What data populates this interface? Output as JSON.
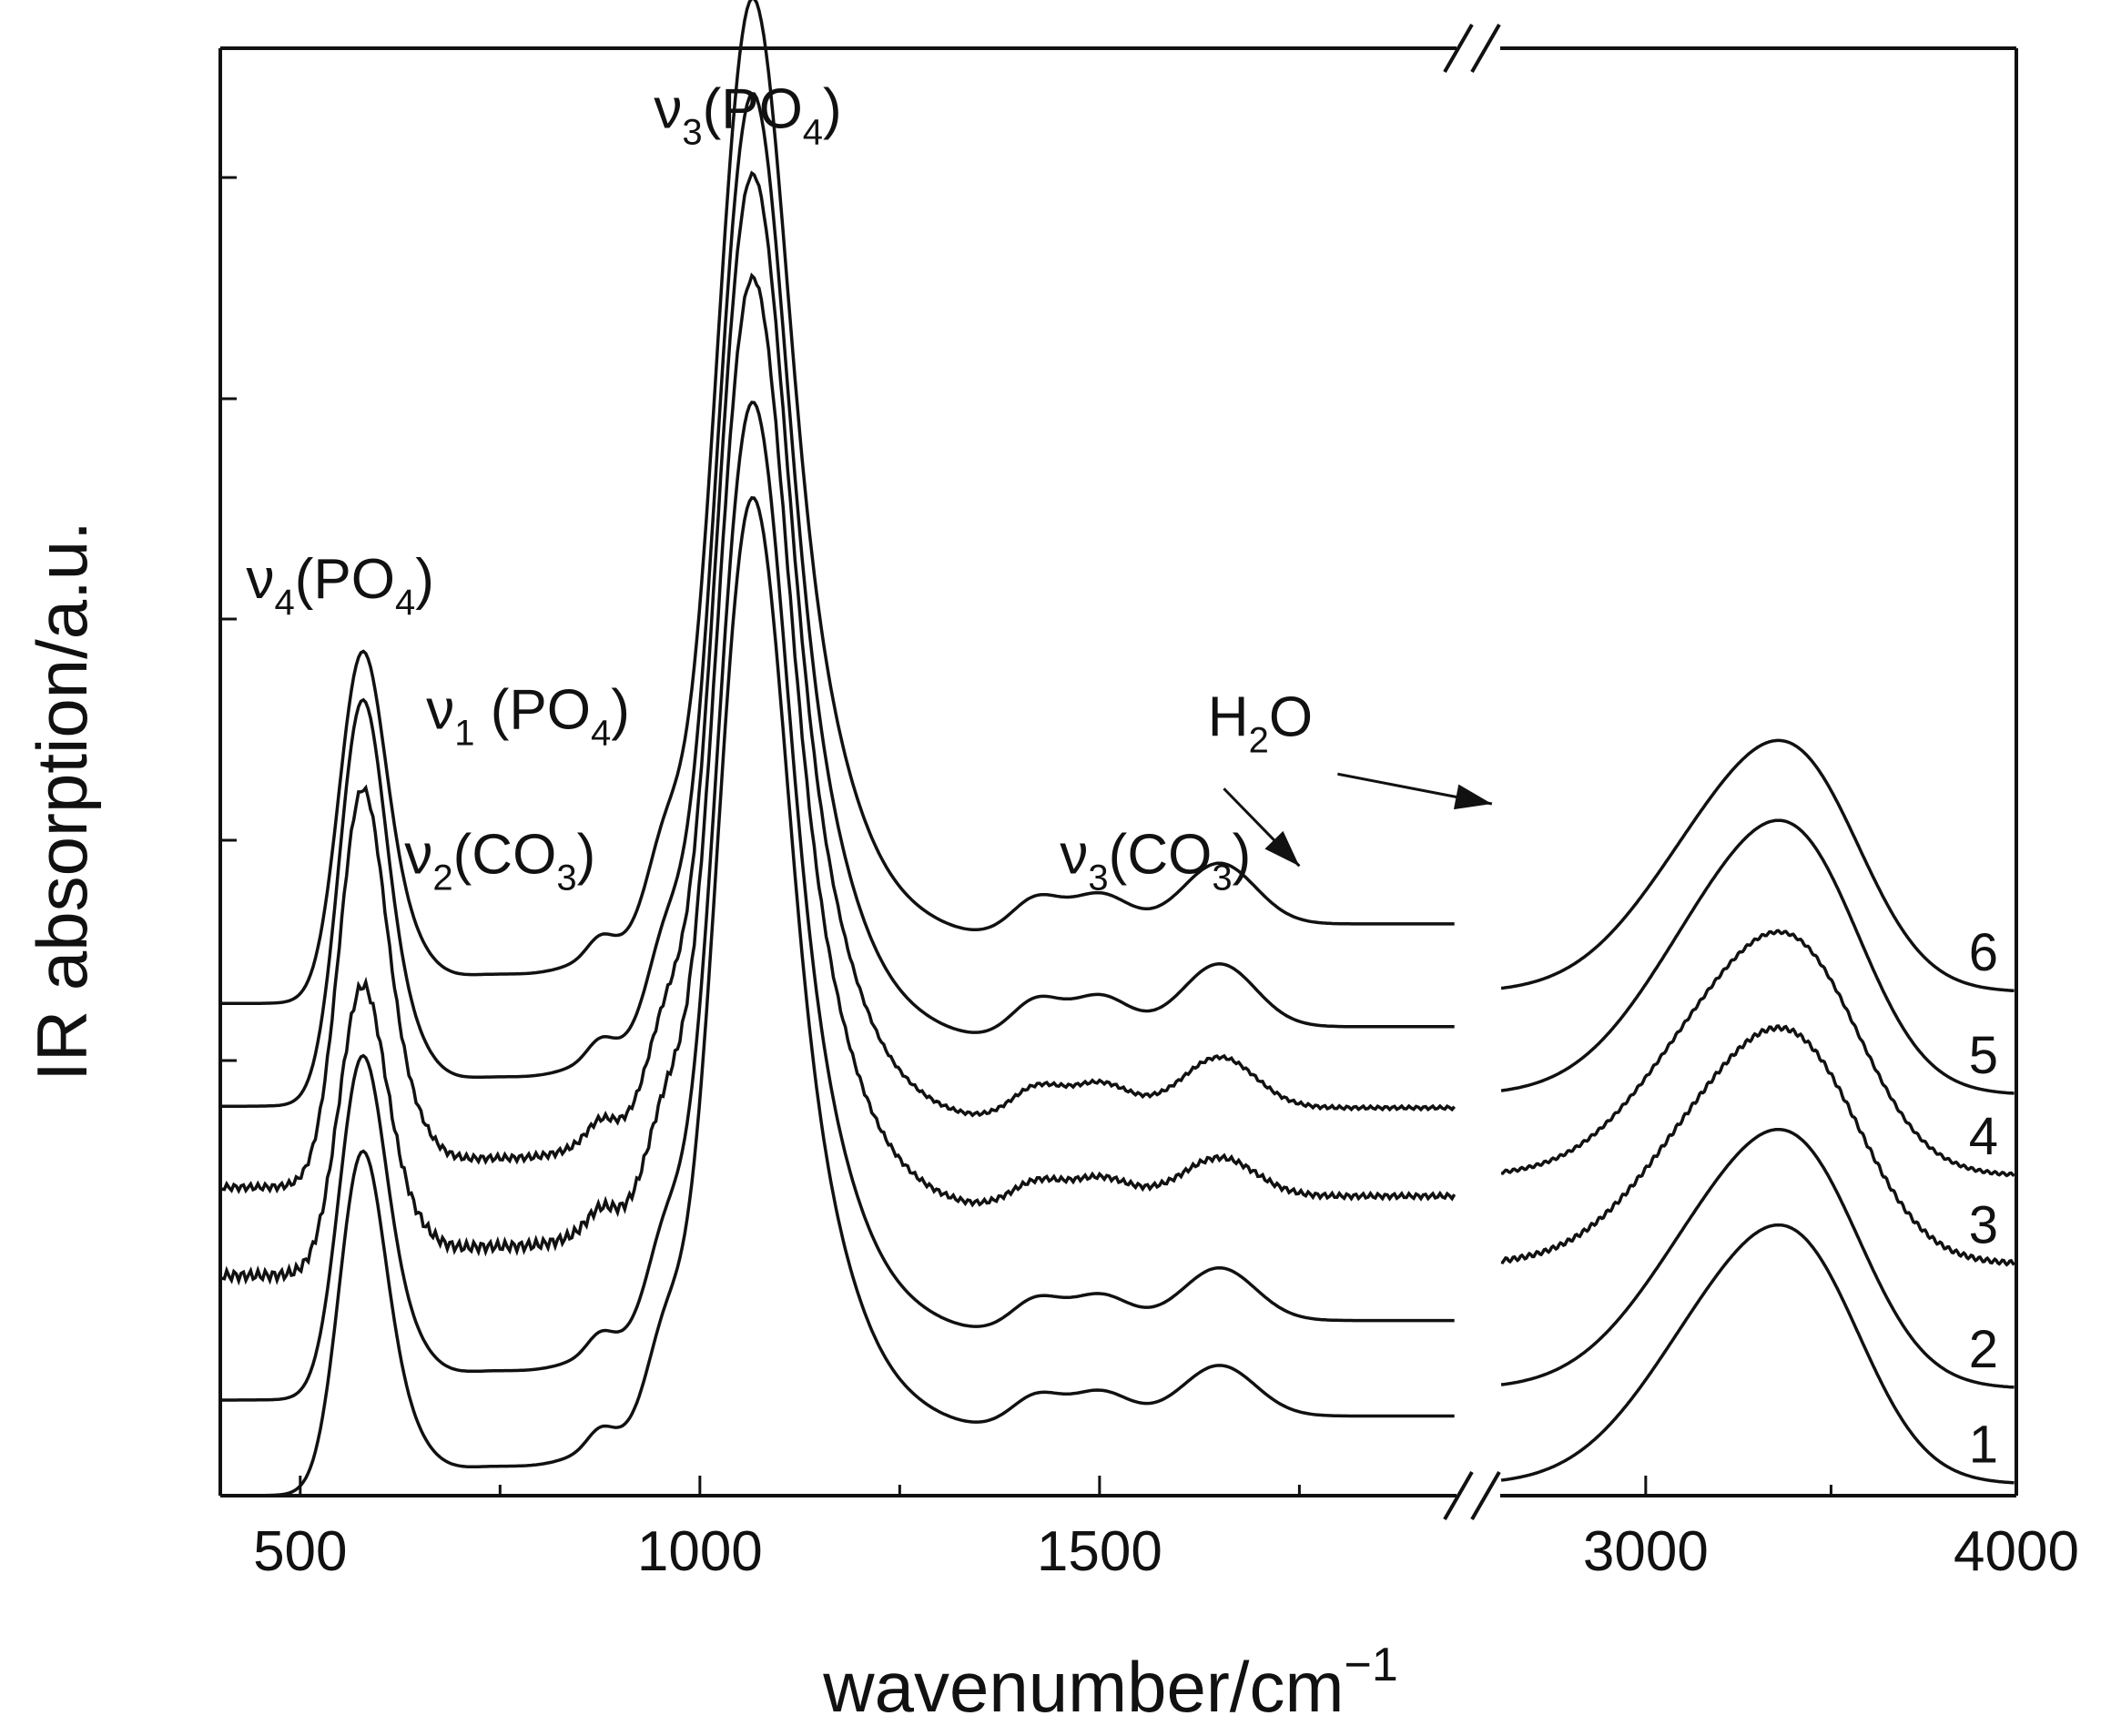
{
  "chart_data": {
    "type": "line",
    "title": "",
    "xlabel": "wavenumber/cm",
    "xlabel_superscript": "−1",
    "ylabel": "IR absorption/a.u.",
    "y_tick_labels": "none",
    "axis_break": {
      "between": [
        1950,
        2600
      ],
      "symbol": "//"
    },
    "x_segments": [
      {
        "xlim": [
          400,
          1950
        ],
        "ticks": [
          500,
          1000,
          1500
        ],
        "minor_ticks": [
          750,
          1250,
          1750
        ]
      },
      {
        "xlim": [
          2600,
          4000
        ],
        "ticks": [
          3000,
          4000
        ],
        "minor_ticks": [
          3500
        ]
      }
    ],
    "x_tick_labels": [
      "500",
      "1000",
      "1500",
      "3000",
      "4000"
    ],
    "ylim": [
      0,
      10
    ],
    "series": [
      {
        "name": "1",
        "baseline": 0.0,
        "nu4": 2.2,
        "nu3": 6.1,
        "co3": 0.5,
        "h2o": 1.7,
        "noise": 0.0
      },
      {
        "name": "2",
        "baseline": 0.6,
        "nu4": 2.2,
        "nu3": 6.1,
        "co3": 0.52,
        "h2o": 1.7,
        "noise": 0.0
      },
      {
        "name": "3",
        "baseline": 1.4,
        "nu4": 1.85,
        "nu3": 6.1,
        "co3": 0.38,
        "h2o": 1.55,
        "noise": 0.03
      },
      {
        "name": "4",
        "baseline": 1.95,
        "nu4": 2.55,
        "nu3": 6.2,
        "co3": 0.5,
        "h2o": 1.6,
        "noise": 0.02
      },
      {
        "name": "5",
        "baseline": 2.45,
        "nu4": 2.6,
        "nu3": 6.2,
        "co3": 0.62,
        "h2o": 1.8,
        "noise": 0.0
      },
      {
        "name": "6",
        "baseline": 3.1,
        "nu4": 2.25,
        "nu3": 6.15,
        "co3": 0.6,
        "h2o": 1.65,
        "noise": 0.0
      }
    ],
    "annotations": [
      {
        "base": "ν",
        "sub": "4",
        "rest": "(PO",
        "sub2": "4",
        "end": ")",
        "at": [
          550,
          6.2
        ]
      },
      {
        "base": "ν",
        "sub": "1",
        "rest": " (PO",
        "sub2": "4",
        "end": ")",
        "at": [
          785,
          5.3
        ]
      },
      {
        "base": "ν",
        "sub": "2",
        "rest": "(CO",
        "sub2": "3",
        "end": ")",
        "at": [
          750,
          4.3
        ]
      },
      {
        "base": "ν",
        "sub": "3",
        "rest": "(PO",
        "sub2": "4",
        "end": ")",
        "at": [
          1060,
          9.45
        ]
      },
      {
        "base": "ν",
        "sub": "3",
        "rest": "(CO",
        "sub2": "3",
        "end": ")",
        "at": [
          1570,
          4.3
        ]
      },
      {
        "base": "H",
        "sub": "2",
        "rest": "O",
        "sub2": "",
        "end": "",
        "at": [
          1960,
          5.25
        ]
      }
    ]
  }
}
